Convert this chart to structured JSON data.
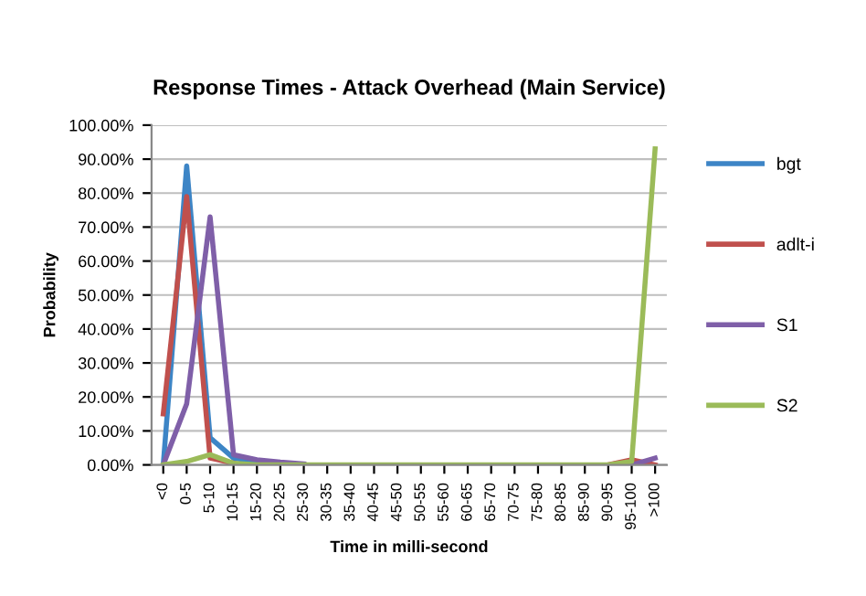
{
  "chart_data": {
    "type": "line",
    "title": "Response Times - Attack Overhead (Main Service)",
    "xlabel": "Time in milli-second",
    "ylabel": "Probability",
    "categories": [
      "<0",
      "0-5",
      "5-10",
      "10-15",
      "15-20",
      "20-25",
      "25-30",
      "30-35",
      "35-40",
      "40-45",
      "45-50",
      "50-55",
      "55-60",
      "60-65",
      "65-70",
      "70-75",
      "75-80",
      "80-85",
      "85-90",
      "90-95",
      "95-100",
      ">100"
    ],
    "series": [
      {
        "name": "bgt",
        "color": "#3d85c6",
        "values": [
          0,
          88,
          8,
          2,
          1,
          null,
          null,
          null,
          null,
          null,
          null,
          null,
          null,
          null,
          null,
          null,
          null,
          null,
          null,
          null,
          null,
          null
        ]
      },
      {
        "name": "adlt-i",
        "color": "#c0504d",
        "values": [
          15,
          79,
          2,
          0.5,
          null,
          null,
          null,
          null,
          null,
          null,
          null,
          null,
          null,
          null,
          null,
          null,
          null,
          null,
          null,
          0,
          1.5,
          0
        ]
      },
      {
        "name": "S1",
        "color": "#7f5fa8",
        "values": [
          0,
          18,
          73,
          3,
          1.5,
          0.8,
          0.3,
          null,
          null,
          null,
          null,
          null,
          null,
          null,
          null,
          null,
          null,
          null,
          null,
          null,
          0,
          2
        ]
      },
      {
        "name": "S2",
        "color": "#9bbb59",
        "values": [
          0,
          1,
          3,
          0.5,
          0,
          0,
          0,
          0,
          0,
          0,
          0,
          0,
          0,
          0,
          0,
          0,
          0,
          0,
          0,
          0,
          1,
          93
        ]
      }
    ],
    "ylim": [
      0,
      100
    ],
    "yticks": [
      {
        "value": 0,
        "label": "0.00%"
      },
      {
        "value": 10,
        "label": "10.00%"
      },
      {
        "value": 20,
        "label": "20.00%"
      },
      {
        "value": 30,
        "label": "30.00%"
      },
      {
        "value": 40,
        "label": "40.00%"
      },
      {
        "value": 50,
        "label": "50.00%"
      },
      {
        "value": 60,
        "label": "60.00%"
      },
      {
        "value": 70,
        "label": "70.00%"
      },
      {
        "value": 80,
        "label": "80.00%"
      },
      {
        "value": 90,
        "label": "90.00%"
      },
      {
        "value": 100,
        "label": "100.00%"
      }
    ],
    "grid": "y",
    "legend": "right",
    "marker": "none",
    "line_style": "solid"
  }
}
